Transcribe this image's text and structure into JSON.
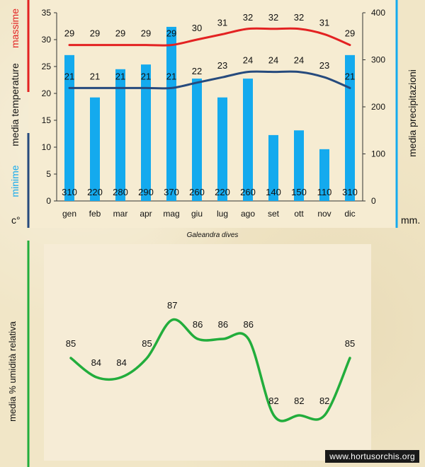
{
  "chart_data": [
    {
      "type": "bar-line",
      "title": "Galeandra dives",
      "categories": [
        "gen",
        "feb",
        "mar",
        "apr",
        "mag",
        "giu",
        "lug",
        "ago",
        "set",
        "ott",
        "nov",
        "dic"
      ],
      "left_axis": {
        "ylim": [
          0,
          35
        ],
        "ticks": [
          0,
          5,
          10,
          15,
          20,
          25,
          30,
          35
        ],
        "unit": "c°"
      },
      "right_axis": {
        "ylim": [
          0,
          400
        ],
        "ticks": [
          0,
          100,
          200,
          300,
          400
        ],
        "label": "media  precipitazioni",
        "unit": "mm."
      },
      "left_labels": {
        "max": "massime",
        "media": "media  temperature",
        "min": "minime"
      },
      "series": [
        {
          "name": "massime",
          "type": "line",
          "axis": "left",
          "color": "#e32222",
          "values": [
            29,
            29,
            29,
            29,
            29,
            30,
            31,
            32,
            32,
            32,
            31,
            29
          ]
        },
        {
          "name": "minime",
          "type": "line",
          "axis": "left",
          "color": "#264a7d",
          "values": [
            21,
            21,
            21,
            21,
            21,
            22,
            23,
            24,
            24,
            24,
            23,
            21
          ]
        },
        {
          "name": "precipitazioni",
          "type": "bar",
          "axis": "right",
          "color": "#14aaee",
          "values": [
            310,
            220,
            280,
            290,
            370,
            260,
            220,
            260,
            140,
            150,
            110,
            310
          ]
        }
      ]
    },
    {
      "type": "line",
      "ylabel": "media %  umidità relativa",
      "categories": [
        "gen",
        "feb",
        "mar",
        "apr",
        "mag",
        "giu",
        "lug",
        "ago",
        "set",
        "ott",
        "nov",
        "dic"
      ],
      "series": [
        {
          "name": "umidità relativa",
          "color": "#22ad3c",
          "values": [
            85,
            84,
            84,
            85,
            87,
            86,
            86,
            86,
            82,
            82,
            82,
            85
          ]
        }
      ]
    }
  ],
  "colors": {
    "max_bar": "#e32222",
    "min_bar": "#264a7d",
    "precip_bar": "#14aaee",
    "humidity_bar": "#22ad3c"
  },
  "watermark": "www.hortusorchis.org"
}
